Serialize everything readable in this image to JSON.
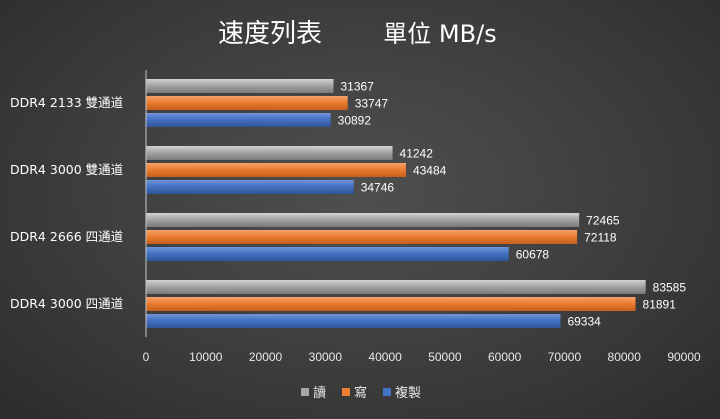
{
  "colors": {
    "background": "#3d3d3d",
    "text": "#ffffff",
    "axis": "#c8c8c8",
    "series": [
      "#a5a5a5",
      "#ed7d31",
      "#4472c4"
    ]
  },
  "chart_data": {
    "type": "bar",
    "orientation": "horizontal",
    "title": "速度列表",
    "subtitle": "單位 MB/s",
    "xlabel": "",
    "ylabel": "",
    "xlim": [
      0,
      90000
    ],
    "x_ticks": [
      0,
      10000,
      20000,
      30000,
      40000,
      50000,
      60000,
      70000,
      80000,
      90000
    ],
    "grid": false,
    "legend_position": "bottom",
    "categories": [
      "DDR4 2133 雙通道",
      "DDR4 3000 雙通道",
      "DDR4 2666 四通道",
      "DDR4 3000 四通道"
    ],
    "series": [
      {
        "name": "讀",
        "color": "#a5a5a5",
        "values": [
          31367,
          41242,
          72465,
          83585
        ]
      },
      {
        "name": "寫",
        "color": "#ed7d31",
        "values": [
          33747,
          43484,
          72118,
          81891
        ]
      },
      {
        "name": "複製",
        "color": "#4472c4",
        "values": [
          30892,
          34746,
          60678,
          69334
        ]
      }
    ],
    "data_labels": true
  }
}
